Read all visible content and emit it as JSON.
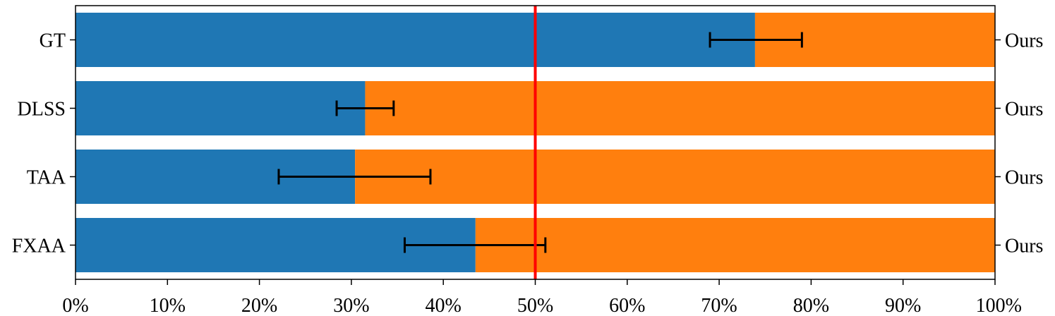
{
  "chart_data": {
    "type": "bar",
    "orientation": "horizontal",
    "stacked": true,
    "title": "",
    "xlabel": "",
    "ylabel": "",
    "xlim": [
      0,
      100
    ],
    "x_ticks": [
      "0%",
      "10%",
      "20%",
      "30%",
      "40%",
      "50%",
      "60%",
      "70%",
      "80%",
      "90%",
      "100%"
    ],
    "categories": [
      "GT",
      "DLSS",
      "TAA",
      "FXAA"
    ],
    "right_labels": [
      "Ours",
      "Ours",
      "Ours",
      "Ours"
    ],
    "series": [
      {
        "values": [
          73.9,
          31.5,
          30.4,
          43.5
        ],
        "color": "#1f77b4"
      },
      {
        "values": [
          26.1,
          68.5,
          69.6,
          56.5
        ],
        "color": "#ff7f0e"
      }
    ],
    "error_bars": [
      {
        "low": 69.0,
        "high": 79.0
      },
      {
        "low": 28.4,
        "high": 34.6
      },
      {
        "low": 22.1,
        "high": 38.6
      },
      {
        "low": 35.8,
        "high": 51.1
      }
    ],
    "reference_line": {
      "x": 50,
      "color": "#ff0000"
    },
    "grid": false,
    "legend": "none"
  }
}
